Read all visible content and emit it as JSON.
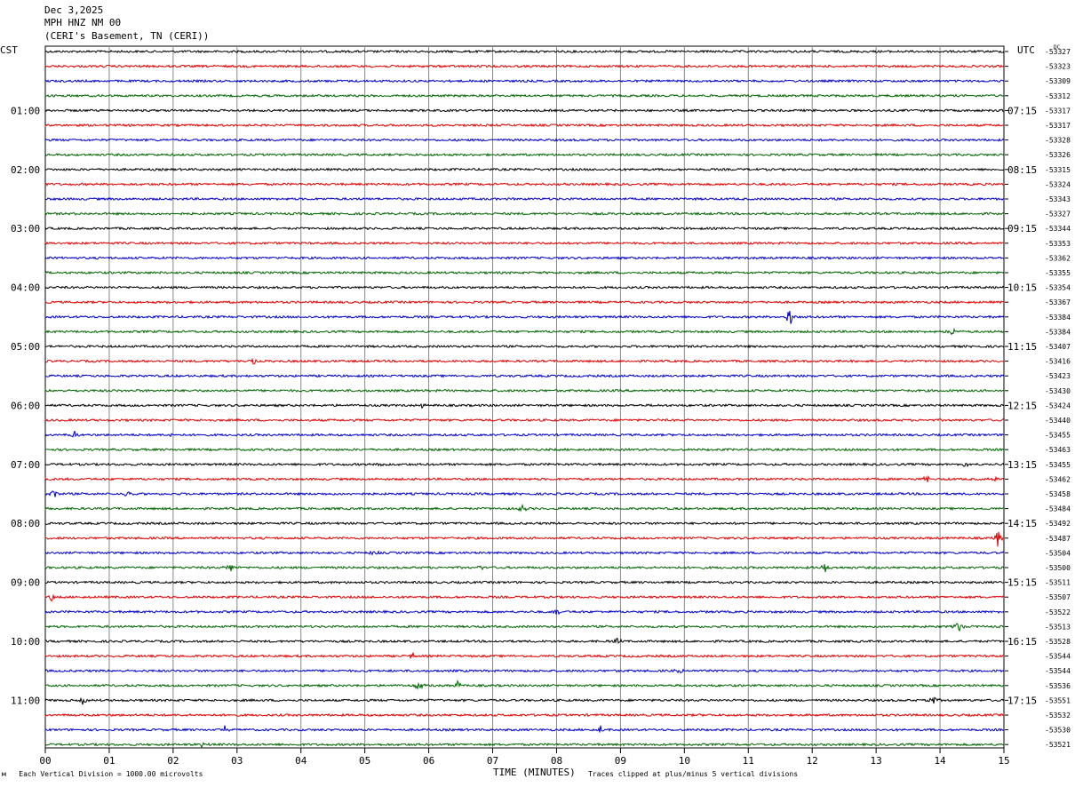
{
  "header": {
    "date": "Dec 3,2025",
    "station": "MPH HNZ NM 00",
    "location": "(CERI's Basement, TN (CERI))"
  },
  "labels": {
    "left_timezone": "CST",
    "right_timezone": "UTC",
    "dc": "DC",
    "x_axis": "TIME (MINUTES)",
    "scale_note": "Each Vertical Division = 1000.00 microvolts",
    "clip_note": "Traces clipped at plus/minus 5 vertical divisions",
    "corner_mark": "м"
  },
  "colors": {
    "trace_cycle": [
      "#000000",
      "#e00000",
      "#0000c8",
      "#006400"
    ],
    "grid": "#888888"
  },
  "chart_data": {
    "type": "line",
    "title": "MPH HNZ NM 00",
    "xlabel": "TIME (MINUTES)",
    "xlim": [
      0,
      15
    ],
    "x_ticks": [
      "00",
      "01",
      "02",
      "03",
      "04",
      "05",
      "06",
      "07",
      "08",
      "09",
      "10",
      "11",
      "12",
      "13",
      "14",
      "15"
    ],
    "row_count": 48,
    "left_hour_labels": [
      {
        "row": 4,
        "label": "01:00"
      },
      {
        "row": 8,
        "label": "02:00"
      },
      {
        "row": 12,
        "label": "03:00"
      },
      {
        "row": 16,
        "label": "04:00"
      },
      {
        "row": 20,
        "label": "05:00"
      },
      {
        "row": 24,
        "label": "06:00"
      },
      {
        "row": 28,
        "label": "07:00"
      },
      {
        "row": 32,
        "label": "08:00"
      },
      {
        "row": 36,
        "label": "09:00"
      },
      {
        "row": 40,
        "label": "10:00"
      },
      {
        "row": 44,
        "label": "11:00"
      }
    ],
    "right_hour_labels": [
      {
        "row": 4,
        "label": "07:15"
      },
      {
        "row": 8,
        "label": "08:15"
      },
      {
        "row": 12,
        "label": "09:15"
      },
      {
        "row": 16,
        "label": "10:15"
      },
      {
        "row": 20,
        "label": "11:15"
      },
      {
        "row": 24,
        "label": "12:15"
      },
      {
        "row": 28,
        "label": "13:15"
      },
      {
        "row": 32,
        "label": "14:15"
      },
      {
        "row": 36,
        "label": "15:15"
      },
      {
        "row": 40,
        "label": "16:15"
      },
      {
        "row": 44,
        "label": "17:15"
      }
    ],
    "dc_offsets": [
      "-53327",
      "-53323",
      "-53309",
      "-53312",
      "-53317",
      "-53317",
      "-53328",
      "-53326",
      "-53315",
      "-53324",
      "-53343",
      "-53327",
      "-53344",
      "-53353",
      "-53362",
      "-53355",
      "-53354",
      "-53367",
      "-53384",
      "-53384",
      "-53407",
      "-53416",
      "-53423",
      "-53430",
      "-53424",
      "-53440",
      "-53455",
      "-53463",
      "-53455",
      "-53462",
      "-53458",
      "-53484",
      "-53492",
      "-53487",
      "-53504",
      "-53500",
      "-53511",
      "-53507",
      "-53522",
      "-53513",
      "-53528",
      "-53544",
      "-53544",
      "-53536",
      "-53551",
      "-53532",
      "-53530",
      "-53521"
    ],
    "events": [
      {
        "row": 18,
        "minute": 11.65,
        "amplitude": 14
      },
      {
        "row": 19,
        "minute": 14.2,
        "amplitude": 5
      },
      {
        "row": 21,
        "minute": 3.25,
        "amplitude": 5
      },
      {
        "row": 24,
        "minute": 5.9,
        "amplitude": 4
      },
      {
        "row": 26,
        "minute": 0.45,
        "amplitude": 6
      },
      {
        "row": 26,
        "minute": 1.95,
        "amplitude": 4
      },
      {
        "row": 28,
        "minute": 5.3,
        "amplitude": 5
      },
      {
        "row": 28,
        "minute": 14.4,
        "amplitude": 4
      },
      {
        "row": 29,
        "minute": 13.8,
        "amplitude": 6
      },
      {
        "row": 29,
        "minute": 14.85,
        "amplitude": 5
      },
      {
        "row": 30,
        "minute": 0.15,
        "amplitude": 9
      },
      {
        "row": 30,
        "minute": 1.3,
        "amplitude": 5
      },
      {
        "row": 31,
        "minute": 7.45,
        "amplitude": 7
      },
      {
        "row": 33,
        "minute": 14.9,
        "amplitude": 10
      },
      {
        "row": 34,
        "minute": 5.15,
        "amplitude": 7
      },
      {
        "row": 35,
        "minute": 2.9,
        "amplitude": 6
      },
      {
        "row": 35,
        "minute": 6.8,
        "amplitude": 4
      },
      {
        "row": 35,
        "minute": 12.2,
        "amplitude": 7
      },
      {
        "row": 37,
        "minute": 0.1,
        "amplitude": 6
      },
      {
        "row": 38,
        "minute": 8.0,
        "amplitude": 4
      },
      {
        "row": 39,
        "minute": 14.3,
        "amplitude": 8
      },
      {
        "row": 40,
        "minute": 8.95,
        "amplitude": 4
      },
      {
        "row": 41,
        "minute": 5.75,
        "amplitude": 4
      },
      {
        "row": 42,
        "minute": 9.95,
        "amplitude": 7
      },
      {
        "row": 43,
        "minute": 5.85,
        "amplitude": 6
      },
      {
        "row": 43,
        "minute": 6.45,
        "amplitude": 6
      },
      {
        "row": 44,
        "minute": 0.6,
        "amplitude": 6
      },
      {
        "row": 44,
        "minute": 13.9,
        "amplitude": 7
      },
      {
        "row": 46,
        "minute": 2.8,
        "amplitude": 5
      },
      {
        "row": 46,
        "minute": 8.7,
        "amplitude": 8
      },
      {
        "row": 47,
        "minute": 2.45,
        "amplitude": 4
      }
    ]
  }
}
